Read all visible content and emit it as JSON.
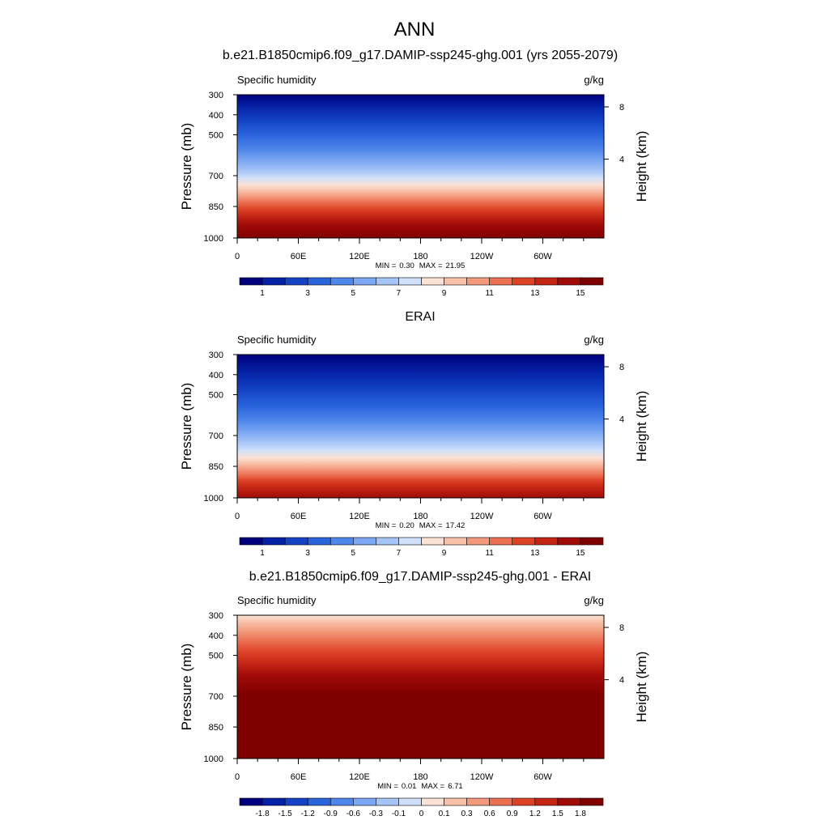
{
  "main_title": "ANN",
  "chart_data": [
    {
      "type": "contour",
      "title": "b.e21.B1850cmip6.f09_g17.DAMIP-ssp245-ghg.001 (yrs 2055-2079)",
      "left_label": "Specific humidity",
      "right_label": "g/kg",
      "ylabel": "Pressure (mb)",
      "ylabel_right": "Height (km)",
      "y_ticks": [
        "300",
        "400",
        "500",
        "700",
        "850",
        "1000"
      ],
      "y_right_ticks": [
        "8",
        "4"
      ],
      "x_ticks": [
        "0",
        "60E",
        "120E",
        "180",
        "120W",
        "60W"
      ],
      "min_label": "MIN =",
      "min_value": "0.30",
      "max_label": "MAX =",
      "max_value": "21.95",
      "colorbar_labels": [
        "1",
        "3",
        "5",
        "7",
        "9",
        "11",
        "13",
        "15"
      ],
      "colorbar_colors": [
        "#00007f",
        "#0521a5",
        "#1444c5",
        "#2a64db",
        "#4f86ea",
        "#7aa6f2",
        "#a6c5f7",
        "#d0e0fa",
        "#fbe2d4",
        "#f8c0a7",
        "#f39a7c",
        "#ec6f52",
        "#dd4226",
        "#c42414",
        "#a00b08",
        "#800000"
      ]
    },
    {
      "type": "contour",
      "title": "ERAI",
      "left_label": "Specific humidity",
      "right_label": "g/kg",
      "ylabel": "Pressure (mb)",
      "ylabel_right": "Height (km)",
      "y_ticks": [
        "300",
        "400",
        "500",
        "700",
        "850",
        "1000"
      ],
      "y_right_ticks": [
        "8",
        "4"
      ],
      "x_ticks": [
        "0",
        "60E",
        "120E",
        "180",
        "120W",
        "60W"
      ],
      "min_label": "MIN =",
      "min_value": "0.20",
      "max_label": "MAX =",
      "max_value": "17.42",
      "colorbar_labels": [
        "1",
        "3",
        "5",
        "7",
        "9",
        "11",
        "13",
        "15"
      ],
      "colorbar_colors": [
        "#00007f",
        "#0521a5",
        "#1444c5",
        "#2a64db",
        "#4f86ea",
        "#7aa6f2",
        "#a6c5f7",
        "#d0e0fa",
        "#fbe2d4",
        "#f8c0a7",
        "#f39a7c",
        "#ec6f52",
        "#dd4226",
        "#c42414",
        "#a00b08",
        "#800000"
      ]
    },
    {
      "type": "contour",
      "title": "b.e21.B1850cmip6.f09_g17.DAMIP-ssp245-ghg.001 - ERAI",
      "left_label": "Specific humidity",
      "right_label": "g/kg",
      "ylabel": "Pressure (mb)",
      "ylabel_right": "Height (km)",
      "y_ticks": [
        "300",
        "400",
        "500",
        "700",
        "850",
        "1000"
      ],
      "y_right_ticks": [
        "8",
        "4"
      ],
      "x_ticks": [
        "0",
        "60E",
        "120E",
        "180",
        "120W",
        "60W"
      ],
      "min_label": "MIN =",
      "min_value": "0.01",
      "max_label": "MAX =",
      "max_value": "6.71",
      "colorbar_labels": [
        "-1.8",
        "-1.5",
        "-1.2",
        "-0.9",
        "-0.6",
        "-0.3",
        "-0.1",
        "0",
        "0.1",
        "0.3",
        "0.6",
        "0.9",
        "1.2",
        "1.5",
        "1.8"
      ],
      "colorbar_colors": [
        "#00007f",
        "#0521a5",
        "#1444c5",
        "#2a64db",
        "#4f86ea",
        "#7aa6f2",
        "#a6c5f7",
        "#d0e0fa",
        "#fbe2d4",
        "#f8c0a7",
        "#f39a7c",
        "#ec6f52",
        "#dd4226",
        "#c42414",
        "#a00b08",
        "#800000"
      ]
    }
  ]
}
